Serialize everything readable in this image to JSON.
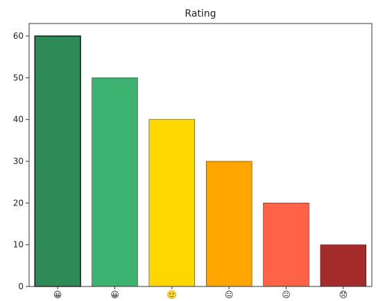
{
  "chart_data": {
    "type": "bar",
    "title": "Rating",
    "xlabel": "",
    "ylabel": "",
    "ylim": [
      0,
      63
    ],
    "yticks": [
      0,
      10,
      20,
      30,
      40,
      50,
      60
    ],
    "categories": [
      "😀",
      "😀",
      "🙂",
      "😐",
      "😐",
      "😞"
    ],
    "values": [
      60,
      50,
      40,
      30,
      20,
      10
    ],
    "bar_colors": [
      "#2e8b57",
      "#3cb371",
      "#ffd700",
      "#ffa500",
      "#ff6347",
      "#a52a2a"
    ],
    "bar_edge_color": "#1a1a1a",
    "grid": false,
    "legend": "none"
  }
}
